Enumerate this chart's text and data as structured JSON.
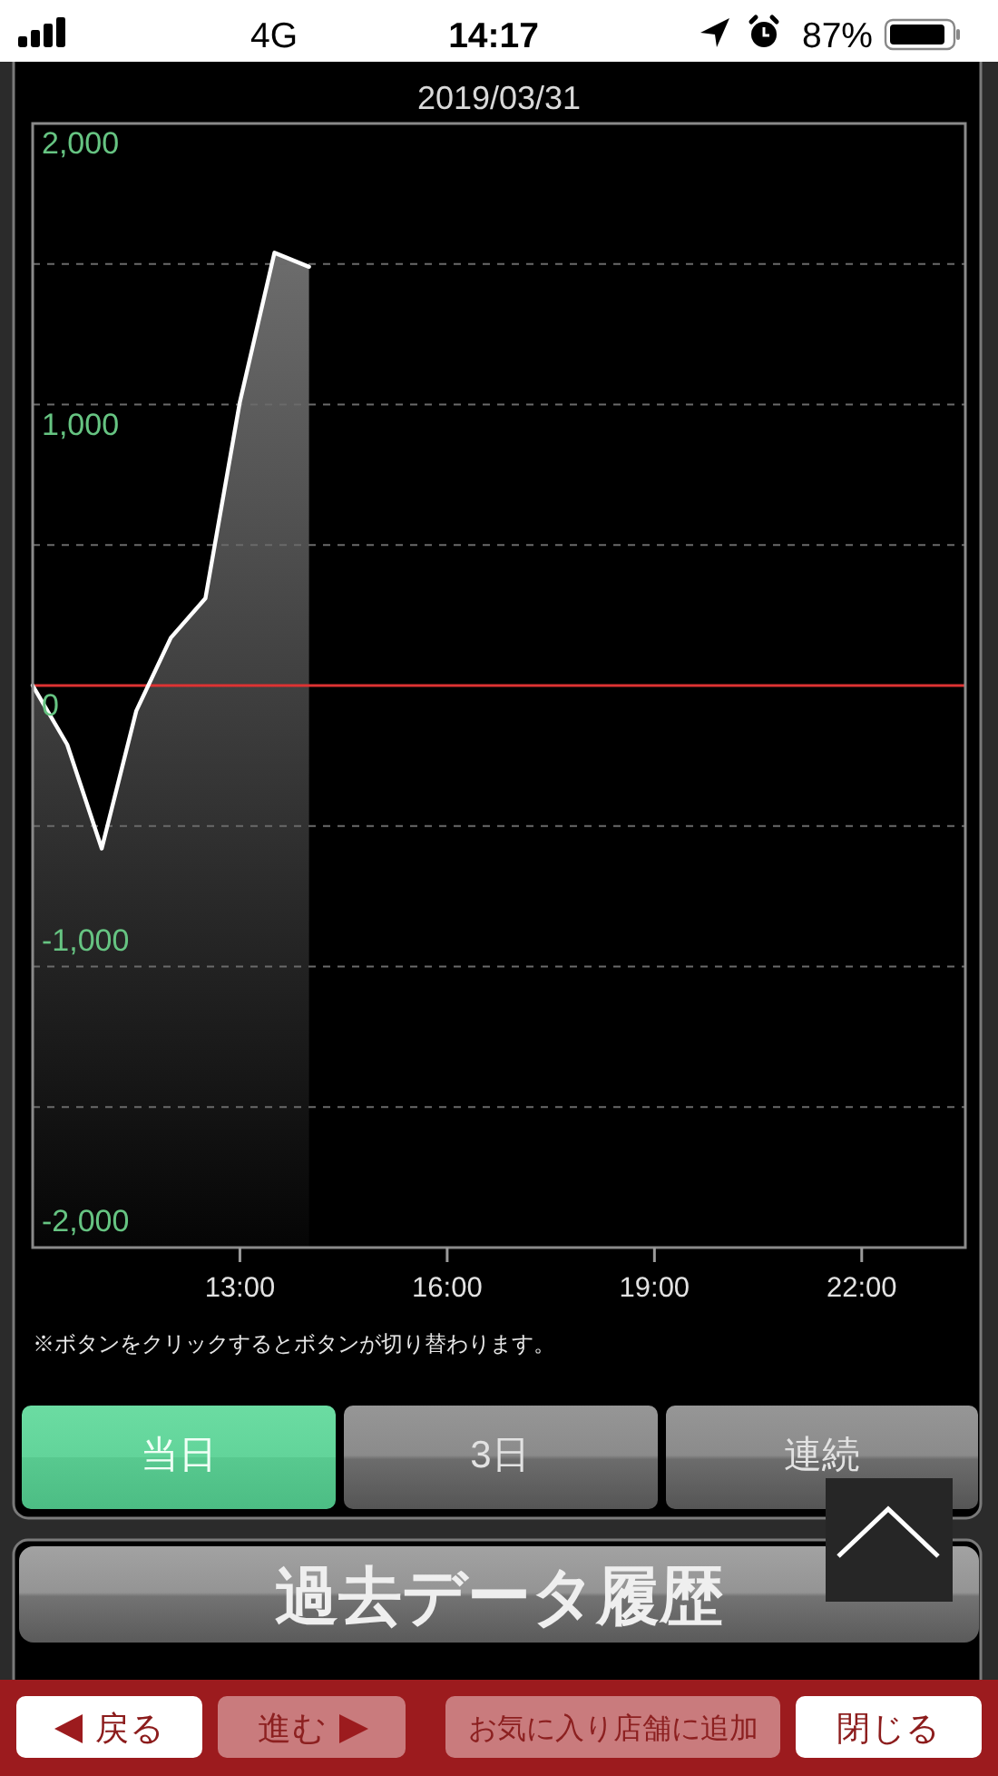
{
  "chart_data": {
    "type": "line",
    "title": "2019/03/31",
    "x": [
      10,
      10.5,
      11,
      11.5,
      12,
      12.5,
      13,
      13.5,
      14
    ],
    "series": [
      {
        "color": "#ffffff",
        "values": [
          0,
          -210,
          -580,
          -90,
          170,
          310,
          1010,
          1540,
          1490
        ]
      }
    ],
    "xlim": [
      10,
      23.5
    ],
    "xticks": [
      {
        "value": 13,
        "label": "13:00"
      },
      {
        "value": 16,
        "label": "16:00"
      },
      {
        "value": 19,
        "label": "19:00"
      },
      {
        "value": 22,
        "label": "22:00"
      }
    ],
    "ylim": [
      -2000,
      2000
    ],
    "yticks": [
      {
        "value": -2000,
        "label": "-2,000"
      },
      {
        "value": -1500,
        "label": null
      },
      {
        "value": -1000,
        "label": "-1,000"
      },
      {
        "value": -500,
        "label": null
      },
      0,
      {
        "value": 500,
        "label": null
      },
      {
        "value": 1000,
        "label": "1,000"
      },
      {
        "value": 1500,
        "label": null
      },
      {
        "value": 2000,
        "label": "2,000"
      }
    ],
    "grid": "y",
    "ref_lines": [
      {
        "axis": "y",
        "value": 0,
        "color": "#dd3333"
      }
    ],
    "annotations": [
      "4G",
      "14:17",
      "87%",
      "※ボタンをクリックするとボタンが切り替わります。",
      "当日",
      "3日",
      "連続",
      "過去データ履歴",
      "戻る",
      "進む",
      "お気に入り店舗に追加",
      "閉じる"
    ]
  }
}
